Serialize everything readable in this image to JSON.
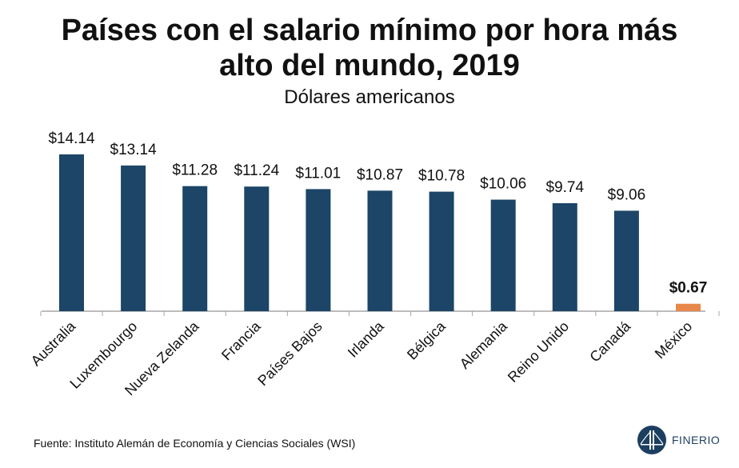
{
  "chart_data": {
    "type": "bar",
    "title_line1": "Países con el salario mínimo por hora más",
    "title_line2": "alto del mundo, 2019",
    "subtitle": "Dólares americanos",
    "categories": [
      "Australia",
      "Luxembourgo",
      "Nueva Zelanda",
      "Francia",
      "Países Bajos",
      "Irlanda",
      "Bélgica",
      "Alemania",
      "Reino Unido",
      "Canadá",
      "México"
    ],
    "values": [
      14.14,
      13.14,
      11.28,
      11.24,
      11.01,
      10.87,
      10.78,
      10.06,
      9.74,
      9.06,
      0.67
    ],
    "value_labels": [
      "$14.14",
      "$13.14",
      "$11.28",
      "$11.24",
      "$11.01",
      "$10.87",
      "$10.78",
      "$10.06",
      "$9.74",
      "$9.06",
      "$0.67"
    ],
    "highlight_category": "México",
    "colors": {
      "default": "#1c4567",
      "highlight": "#e8874a"
    },
    "ylim": [
      0,
      15
    ],
    "grid": false,
    "legend": "none"
  },
  "footer": {
    "source": "Fuente: Instituto Alemán de Economía y Ciencias Sociales (WSI)",
    "brand": "FINERIO",
    "brand_icon": "bridge-logo-icon"
  }
}
